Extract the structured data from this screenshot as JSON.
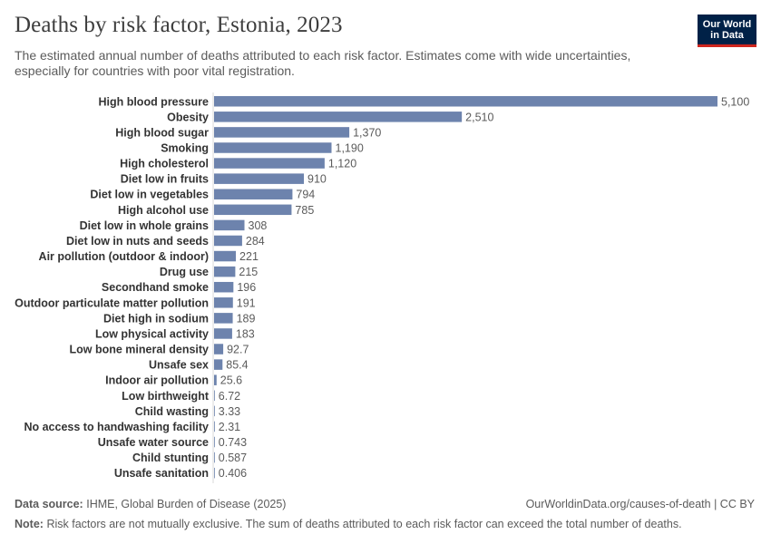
{
  "header": {
    "title": "Deaths by risk factor, Estonia, 2023",
    "subtitle": "The estimated annual number of deaths attributed to each risk factor. Estimates come with wide uncertainties, especially for countries with poor vital registration."
  },
  "logo": {
    "line1": "Our World",
    "line2": "in Data"
  },
  "footer": {
    "source_label": "Data source:",
    "source_text": "IHME, Global Burden of Disease (2025)",
    "url": "OurWorldinData.org/causes-of-death | CC BY",
    "note_label": "Note:",
    "note_text": "Risk factors are not mutually exclusive. The sum of deaths attributed to each risk factor can exceed the total number of deaths."
  },
  "colors": {
    "bar": "#6d83ad",
    "axis": "#dadada",
    "label": "#333333",
    "value": "#5b5b5b"
  },
  "chart_data": {
    "type": "bar",
    "orientation": "horizontal",
    "title": "Deaths by risk factor, Estonia, 2023",
    "xlabel": "",
    "ylabel": "",
    "xlim": [
      0,
      5100
    ],
    "categories": [
      "High blood pressure",
      "Obesity",
      "High blood sugar",
      "Smoking",
      "High cholesterol",
      "Diet low in fruits",
      "Diet low in vegetables",
      "High alcohol use",
      "Diet low in whole grains",
      "Diet low in nuts and seeds",
      "Air pollution (outdoor & indoor)",
      "Drug use",
      "Secondhand smoke",
      "Outdoor particulate matter pollution",
      "Diet high in sodium",
      "Low physical activity",
      "Low bone mineral density",
      "Unsafe sex",
      "Indoor air pollution",
      "Low birthweight",
      "Child wasting",
      "No access to handwashing facility",
      "Unsafe water source",
      "Child stunting",
      "Unsafe sanitation"
    ],
    "values": [
      5100,
      2510,
      1370,
      1190,
      1120,
      910,
      794,
      785,
      308,
      284,
      221,
      215,
      196,
      191,
      189,
      183,
      92.7,
      85.4,
      25.6,
      6.72,
      3.33,
      2.31,
      0.743,
      0.587,
      0.406
    ],
    "value_labels": [
      "5,100",
      "2,510",
      "1,370",
      "1,190",
      "1,120",
      "910",
      "794",
      "785",
      "308",
      "284",
      "221",
      "215",
      "196",
      "191",
      "189",
      "183",
      "92.7",
      "85.4",
      "25.6",
      "6.72",
      "3.33",
      "2.31",
      "0.743",
      "0.587",
      "0.406"
    ]
  }
}
